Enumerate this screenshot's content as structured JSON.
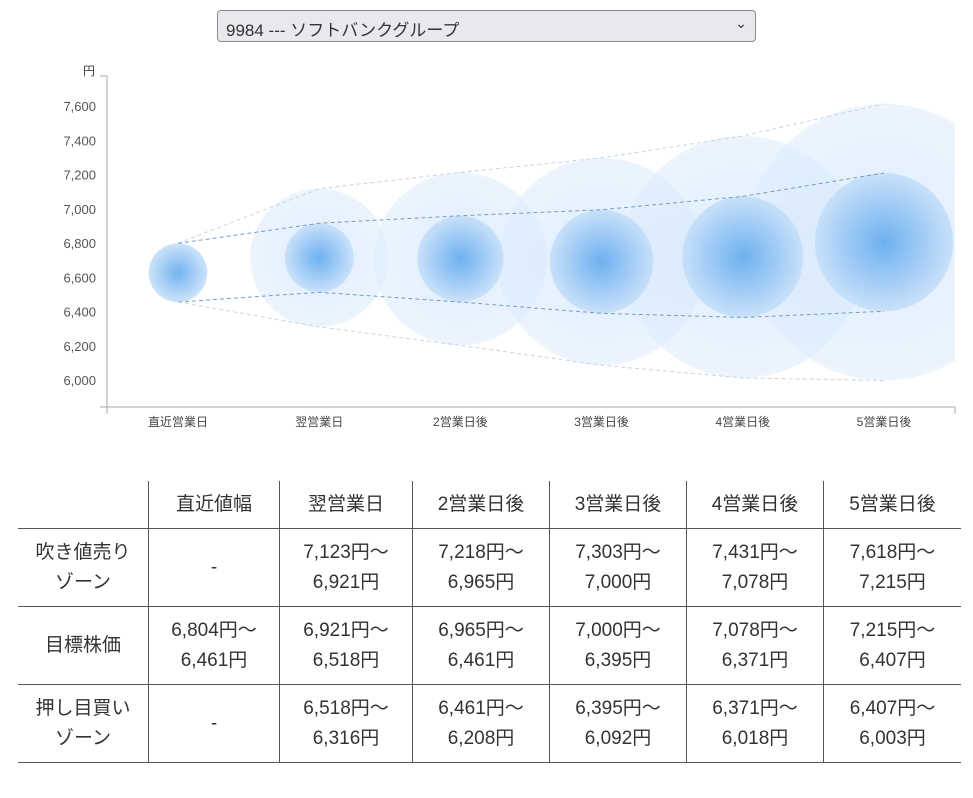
{
  "selector": {
    "value": "9984 --- ソフトバンクグループ"
  },
  "chart_data": {
    "type": "bubble",
    "ylabel": "円",
    "ylim": [
      5850,
      7800
    ],
    "yticks": [
      6000,
      6200,
      6400,
      6600,
      6800,
      7000,
      7200,
      7400,
      7600
    ],
    "ytick_labels": [
      "6,000",
      "6,200",
      "6,400",
      "6,600",
      "6,800",
      "7,000",
      "7,200",
      "7,400",
      "7,600"
    ],
    "categories": [
      "直近営業日",
      "翌営業日",
      "2営業日後",
      "3営業日後",
      "4営業日後",
      "5営業日後"
    ],
    "sell_high": [
      null,
      7123,
      7218,
      7303,
      7431,
      7618
    ],
    "target_high": [
      6804,
      6921,
      6965,
      7000,
      7078,
      7215
    ],
    "target_low": [
      6461,
      6518,
      6461,
      6395,
      6371,
      6407
    ],
    "buy_low": [
      null,
      6316,
      6208,
      6092,
      6018,
      6003
    ],
    "colors": {
      "core": "#5aa6ee",
      "outer": "#d8eafc",
      "line": "#7a9cc0"
    }
  },
  "table": {
    "headers": [
      "",
      "直近値幅",
      "翌営業日",
      "2営業日後",
      "3営業日後",
      "4営業日後",
      "5営業日後"
    ],
    "rows": [
      {
        "label": [
          "吹き値売り",
          "ゾーン"
        ],
        "cells": [
          [
            "-"
          ],
          [
            "7,123円〜",
            "6,921円"
          ],
          [
            "7,218円〜",
            "6,965円"
          ],
          [
            "7,303円〜",
            "7,000円"
          ],
          [
            "7,431円〜",
            "7,078円"
          ],
          [
            "7,618円〜",
            "7,215円"
          ]
        ]
      },
      {
        "label": [
          "目標株価"
        ],
        "cells": [
          [
            "6,804円〜",
            "6,461円"
          ],
          [
            "6,921円〜",
            "6,518円"
          ],
          [
            "6,965円〜",
            "6,461円"
          ],
          [
            "7,000円〜",
            "6,395円"
          ],
          [
            "7,078円〜",
            "6,371円"
          ],
          [
            "7,215円〜",
            "6,407円"
          ]
        ]
      },
      {
        "label": [
          "押し目買い",
          "ゾーン"
        ],
        "cells": [
          [
            "-"
          ],
          [
            "6,518円〜",
            "6,316円"
          ],
          [
            "6,461円〜",
            "6,208円"
          ],
          [
            "6,395円〜",
            "6,092円"
          ],
          [
            "6,371円〜",
            "6,018円"
          ],
          [
            "6,407円〜",
            "6,003円"
          ]
        ]
      }
    ]
  }
}
